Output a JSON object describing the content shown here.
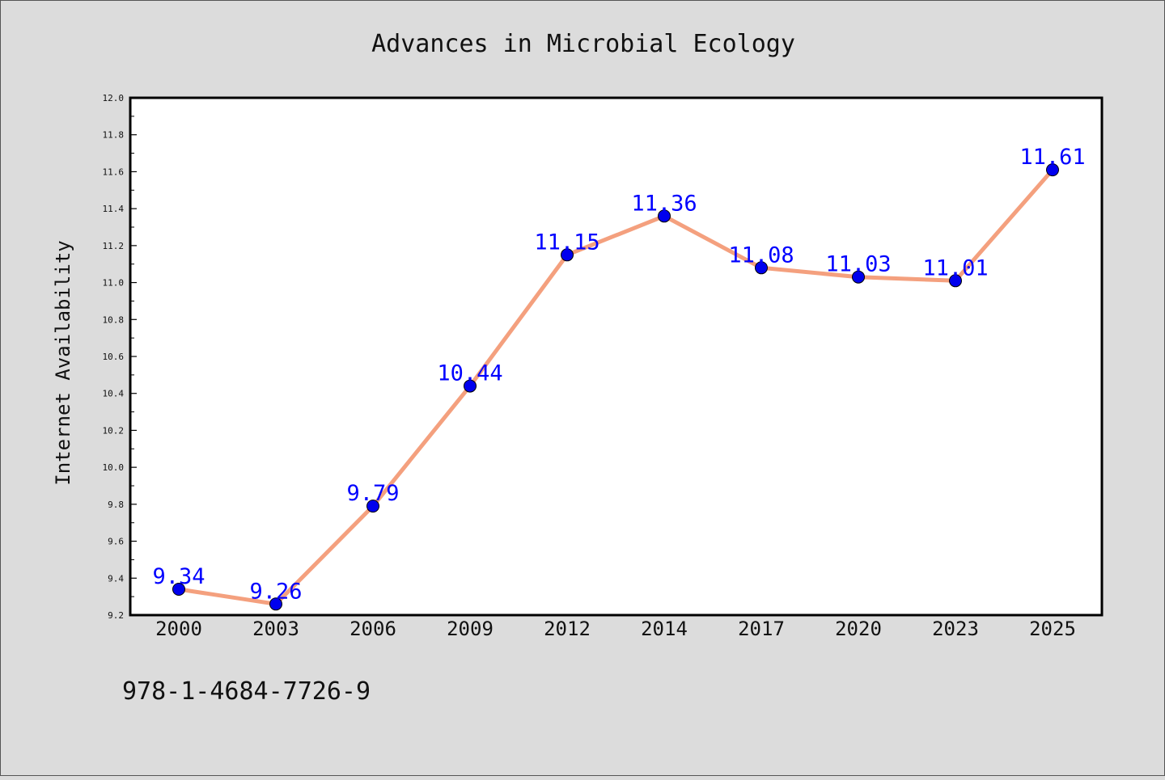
{
  "chart_data": {
    "type": "line",
    "title": "Advances in Microbial Ecology",
    "xlabel": "",
    "ylabel": "Internet Availability",
    "categories": [
      "2000",
      "2003",
      "2006",
      "2009",
      "2012",
      "2014",
      "2017",
      "2020",
      "2023",
      "2025"
    ],
    "series": [
      {
        "values": [
          9.34,
          9.26,
          9.79,
          10.44,
          11.15,
          11.36,
          11.08,
          11.03,
          11.01,
          11.61
        ]
      }
    ],
    "data_labels": [
      "9.34",
      "9.26",
      "9.79",
      "10.44",
      "11.15",
      "11.36",
      "11.08",
      "11.03",
      "11.01",
      "11.61"
    ],
    "ylim": [
      9.2,
      12.0
    ],
    "yticks": [
      "9.2",
      "9.4",
      "9.6",
      "9.8",
      "10.0",
      "10.2",
      "10.4",
      "10.6",
      "10.8",
      "11.0",
      "11.2",
      "11.4",
      "11.6",
      "11.8",
      "12.0"
    ],
    "grid": false,
    "legend": "none"
  },
  "footnote": "978-1-4684-7726-9",
  "colors": {
    "background": "#dcdcdc",
    "plot_background": "#ffffff",
    "line": "#f4a07e",
    "marker": "#0000ee",
    "data_label": "#0000ff",
    "text": "#111111"
  }
}
